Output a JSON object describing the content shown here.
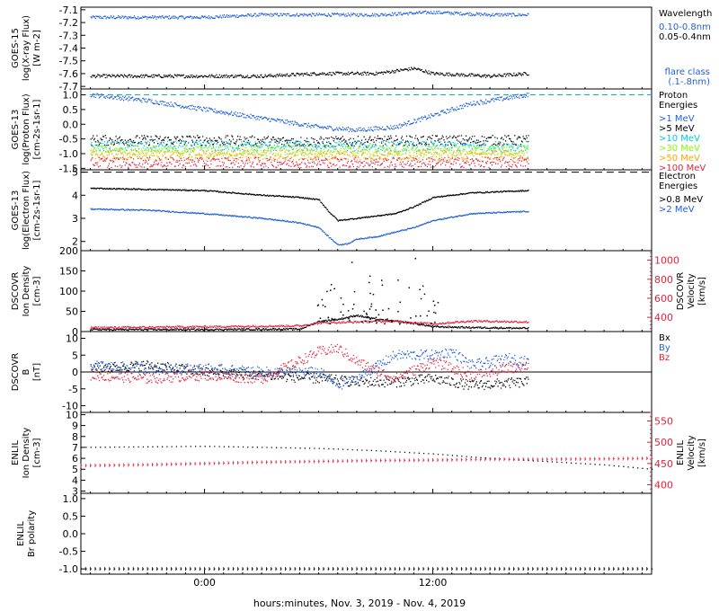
{
  "xaxis": {
    "label": "hours:minutes, Nov.  3, 2019 - Nov.  4, 2019",
    "ticks": [
      {
        "t": 0,
        "label": "0:00"
      },
      {
        "t": 12,
        "label": "12:00"
      }
    ],
    "range": [
      -6.5,
      23.5
    ],
    "data_end": 17
  },
  "colors": {
    "black": "#000000",
    "blue": "#1f5fdc",
    "cyan": "#00c8e6",
    "lime": "#80ff00",
    "orange": "#ffa500",
    "red": "#e8203c",
    "darkred": "#cc2200",
    "dashed_cyan": "#00aaff"
  },
  "chart_data": [
    {
      "type": "scatter",
      "id": "goes15-xray",
      "ylabel": [
        "GOES-15",
        "log(X-ray Flux)",
        "[W m-2]"
      ],
      "ylim": [
        -7.72,
        -7.08
      ],
      "yticks": [
        -7.1,
        -7.2,
        -7.3,
        -7.4,
        -7.5,
        -7.6,
        -7.7
      ],
      "legend_header": [
        "Wavelength"
      ],
      "legend": [
        {
          "label": "0.10-0.8nm",
          "color": "blue"
        },
        {
          "label": "0.05-0.4nm",
          "color": "black"
        }
      ],
      "extra_label": [
        "flare class",
        "(.1-.8nm)"
      ],
      "series": [
        {
          "color": "blue",
          "x": [
            -6,
            0,
            3,
            6,
            9,
            12,
            15,
            17
          ],
          "y": [
            -7.16,
            -7.16,
            -7.14,
            -7.14,
            -7.14,
            -7.12,
            -7.14,
            -7.14
          ]
        },
        {
          "color": "black",
          "x": [
            -6,
            0,
            3,
            6,
            9,
            11,
            12,
            15,
            17
          ],
          "y": [
            -7.62,
            -7.62,
            -7.62,
            -7.6,
            -7.6,
            -7.56,
            -7.6,
            -7.62,
            -7.6
          ]
        }
      ]
    },
    {
      "type": "scatter",
      "id": "goes13-proton",
      "ylabel": [
        "GOES-13",
        "log(Proton Flux)",
        "[cm-2s-1sr-1]"
      ],
      "ylim": [
        -1.55,
        1.2
      ],
      "yticks": [
        1.0,
        0.5,
        0.0,
        -0.5,
        -1.0,
        -1.5
      ],
      "ytick_labels": [
        "1.0",
        "0.5",
        "0.0",
        "-0.5",
        "-1.0",
        "-1.5"
      ],
      "hline": {
        "y": 1.0,
        "color": "dashed_cyan"
      },
      "legend_header": [
        "Proton",
        "Energies"
      ],
      "legend": [
        {
          "label": ">1 MeV",
          "color": "blue"
        },
        {
          "label": ">5 MeV",
          "color": "black"
        },
        {
          "label": ">10 MeV",
          "color": "cyan"
        },
        {
          "label": ">30 MeV",
          "color": "lime"
        },
        {
          "label": ">50 MeV",
          "color": "orange"
        },
        {
          "label": ">100 MeV",
          "color": "red"
        }
      ],
      "series": [
        {
          "color": "blue",
          "x": [
            -6,
            -3,
            0,
            3,
            6,
            8,
            10,
            12,
            14,
            16,
            17
          ],
          "y": [
            1.0,
            0.8,
            0.5,
            0.2,
            -0.1,
            -0.2,
            -0.1,
            0.3,
            0.7,
            0.9,
            1.0
          ]
        },
        {
          "color": "black",
          "x": [
            -6,
            0,
            6,
            12,
            17
          ],
          "y": [
            -0.55,
            -0.55,
            -0.6,
            -0.55,
            -0.55
          ]
        },
        {
          "color": "cyan",
          "x": [
            -6,
            0,
            6,
            12,
            17
          ],
          "y": [
            -0.75,
            -0.75,
            -0.75,
            -0.75,
            -0.75
          ]
        },
        {
          "color": "lime",
          "x": [
            -6,
            0,
            6,
            12,
            17
          ],
          "y": [
            -0.9,
            -0.9,
            -0.9,
            -0.9,
            -0.9
          ]
        },
        {
          "color": "orange",
          "x": [
            -6,
            0,
            6,
            12,
            17
          ],
          "y": [
            -1.05,
            -1.05,
            -1.05,
            -1.05,
            -1.05
          ]
        },
        {
          "color": "red",
          "x": [
            -6,
            0,
            6,
            12,
            17
          ],
          "y": [
            -1.3,
            -1.3,
            -1.3,
            -1.3,
            -1.3
          ]
        }
      ]
    },
    {
      "type": "scatter",
      "id": "goes13-electron",
      "ylabel": [
        "GOES-13",
        "log(Electron Flux)",
        "[cm-2s-1sr-1]"
      ],
      "ylim": [
        1.6,
        5.1
      ],
      "yticks": [
        5,
        4,
        3,
        2
      ],
      "hline": {
        "y": 5.0,
        "color": "black"
      },
      "legend_header": [
        "Electron",
        "Energies"
      ],
      "legend": [
        {
          "label": ">0.8 MeV",
          "color": "black"
        },
        {
          "label": ">2 MeV",
          "color": "blue"
        }
      ],
      "series": [
        {
          "color": "black",
          "x": [
            -6,
            -3,
            0,
            3,
            5,
            6,
            6.5,
            7,
            8,
            9,
            10,
            11,
            12,
            14,
            17
          ],
          "y": [
            4.3,
            4.25,
            4.2,
            4.0,
            3.9,
            3.8,
            3.3,
            2.9,
            3.0,
            3.1,
            3.2,
            3.5,
            3.9,
            4.1,
            4.2
          ]
        },
        {
          "color": "blue",
          "x": [
            -6,
            -3,
            0,
            3,
            5,
            6,
            6.5,
            7,
            7.5,
            8,
            9,
            10,
            11,
            12,
            14,
            17
          ],
          "y": [
            3.4,
            3.35,
            3.2,
            3.0,
            2.8,
            2.6,
            2.2,
            1.85,
            1.9,
            2.1,
            2.2,
            2.4,
            2.6,
            2.9,
            3.2,
            3.3
          ]
        }
      ]
    },
    {
      "type": "scatter",
      "id": "dscovr-density",
      "ylabel": [
        "DSCOVR",
        "Ion Density",
        "[cm-3]"
      ],
      "ylim": [
        0,
        200
      ],
      "yticks": [
        0,
        50,
        100,
        150,
        200
      ],
      "ylabel_right": [
        "DSCOVR",
        "Velocity",
        "[km/s]"
      ],
      "ylim_right": [
        250,
        1100
      ],
      "yticks_right": [
        400,
        600,
        800,
        1000
      ],
      "series": [
        {
          "color": "black",
          "axis": "left",
          "x": [
            -6,
            0,
            5,
            6,
            7,
            8,
            9,
            10,
            11,
            12,
            14,
            17
          ],
          "y": [
            5,
            5,
            6,
            25,
            30,
            40,
            30,
            25,
            20,
            12,
            10,
            8
          ]
        },
        {
          "color": "red",
          "axis": "right",
          "x": [
            -6,
            0,
            5,
            6,
            8,
            10,
            12,
            14,
            17
          ],
          "y": [
            290,
            300,
            310,
            340,
            350,
            360,
            330,
            360,
            350
          ]
        }
      ]
    },
    {
      "type": "scatter",
      "id": "dscovr-b",
      "ylabel": [
        "DSCOVR",
        "B",
        "[nT]"
      ],
      "ylim": [
        -12,
        12
      ],
      "yticks": [
        10,
        5,
        0,
        -5,
        -10
      ],
      "hline": {
        "y": 0,
        "color": "black"
      },
      "legend": [
        {
          "label": "Bx",
          "color": "black"
        },
        {
          "label": "By",
          "color": "blue"
        },
        {
          "label": "Bz",
          "color": "red"
        }
      ],
      "series": [
        {
          "color": "black",
          "x": [
            -6,
            -3,
            0,
            3,
            6,
            8,
            10,
            12,
            14,
            17
          ],
          "y": [
            1,
            2,
            0,
            -1,
            -2,
            -3,
            -3,
            -2,
            -4,
            -3
          ]
        },
        {
          "color": "blue",
          "x": [
            -6,
            -3,
            0,
            3,
            6,
            7,
            8,
            10,
            12,
            13,
            14,
            16,
            17
          ],
          "y": [
            2,
            1,
            1,
            0,
            0,
            -4,
            -2,
            5,
            5,
            6,
            2,
            4,
            3
          ]
        },
        {
          "color": "red",
          "x": [
            -6,
            -3,
            0,
            3,
            6,
            7,
            8,
            10,
            12,
            14,
            17
          ],
          "y": [
            -1,
            -2,
            -1,
            -2,
            6,
            7,
            3,
            -2,
            3,
            -1,
            2
          ]
        }
      ]
    },
    {
      "type": "scatter",
      "id": "enlil-density",
      "ylabel": [
        "ENLIL",
        "Ion Density",
        "[cm-3]"
      ],
      "ylim": [
        2.8,
        10.2
      ],
      "yticks": [
        10,
        9,
        8,
        7,
        6,
        5,
        4,
        3
      ],
      "ylabel_right": [
        "ENLIL",
        "Velocity",
        "[km/s]"
      ],
      "ylim_right": [
        380,
        570
      ],
      "yticks_right": [
        400,
        450,
        500,
        550
      ],
      "series": [
        {
          "color": "black",
          "axis": "left",
          "x": [
            -6.5,
            -3,
            0,
            3,
            6,
            9,
            12,
            15,
            18,
            21,
            23.5
          ],
          "y": [
            7.0,
            7.05,
            7.1,
            7.0,
            6.9,
            6.7,
            6.4,
            6.0,
            5.7,
            5.4,
            5.0
          ]
        },
        {
          "color": "red",
          "axis": "right",
          "x": [
            -6.5,
            -3,
            0,
            3,
            6,
            9,
            12,
            15,
            18,
            21,
            23.5
          ],
          "y": [
            445,
            447,
            450,
            453,
            455,
            457,
            458,
            460,
            460,
            461,
            462
          ]
        }
      ]
    },
    {
      "type": "scatter",
      "id": "enlil-polarity",
      "ylabel": [
        "ENLIL",
        "Br polarity"
      ],
      "ylim": [
        -1.15,
        1.15
      ],
      "yticks": [
        1.0,
        0.5,
        0.0,
        -0.5,
        -1.0
      ],
      "ytick_labels": [
        "1.0",
        "0.5",
        "0.0",
        "-0.5",
        "-1.0"
      ],
      "series": [
        {
          "color": "black",
          "x": [
            -6.5,
            0,
            6,
            12,
            18,
            23.5
          ],
          "y": [
            -1,
            -1,
            -1,
            -1,
            -1,
            -1
          ]
        }
      ]
    }
  ]
}
